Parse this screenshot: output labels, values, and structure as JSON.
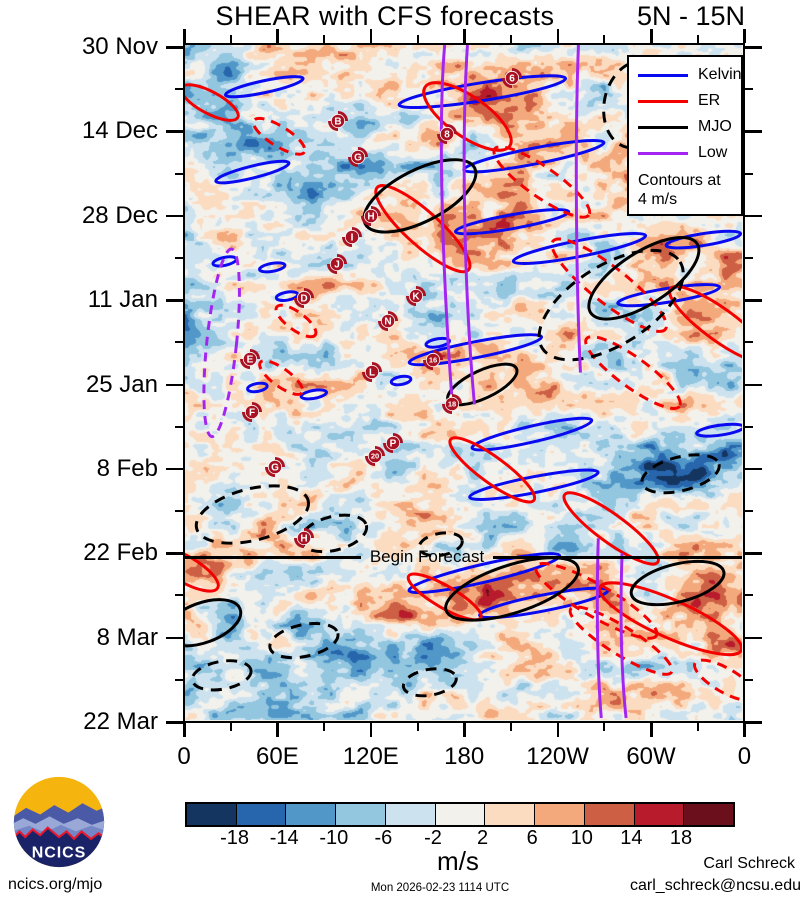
{
  "header": {
    "title": "SHEAR with CFS forecasts",
    "lat_band": "5N - 15N"
  },
  "legend": {
    "items": [
      {
        "name": "kelvin",
        "label": "Kelvin",
        "color": "#0a0af0"
      },
      {
        "name": "er",
        "label": "ER",
        "color": "#f40000"
      },
      {
        "name": "mjo",
        "label": "MJO",
        "color": "#000000"
      },
      {
        "name": "low",
        "label": "Low",
        "color": "#a225f0"
      }
    ],
    "note": [
      "Contours at",
      "4 m/s"
    ]
  },
  "chart_data": {
    "type": "heatmap",
    "title": "SHEAR with CFS forecasts",
    "latitude_band": "5N - 15N",
    "x_axis": {
      "ticks": [
        "0",
        "60E",
        "120E",
        "180",
        "120W",
        "60W",
        "0"
      ]
    },
    "y_axis": {
      "ticks": [
        "30 Nov",
        "14 Dec",
        "28 Dec",
        "11 Jan",
        "25 Jan",
        "8 Feb",
        "22 Feb",
        "8 Mar",
        "22 Mar"
      ]
    },
    "colorbar": {
      "units": "m/s",
      "tick_labels": [
        "-18",
        "-14",
        "-10",
        "-6",
        "-2",
        "2",
        "6",
        "10",
        "14",
        "18"
      ],
      "boundaries": [
        -18,
        -14,
        -10,
        -6,
        -2,
        2,
        6,
        10,
        14,
        18
      ],
      "colors": [
        "#14355f",
        "#2766ad",
        "#5198c9",
        "#93c6df",
        "#cde2ef",
        "#f2f1ec",
        "#fbdcc1",
        "#f4a97c",
        "#cd5f45",
        "#b81b2c",
        "#6b0f1d"
      ]
    },
    "contours": {
      "interval": "4 m/s",
      "series": [
        "Kelvin",
        "ER",
        "MJO",
        "Low"
      ]
    },
    "annotations": [
      {
        "label": "Begin Forecast",
        "at_date": "22 Feb"
      }
    ],
    "storm_marker_color": "#a81222",
    "storm_markers": [
      {
        "label": "B",
        "lon": "99E",
        "date": "13 Dec",
        "fx": 0.274,
        "fy": 0.113
      },
      {
        "label": "G",
        "lon": "112E",
        "date": "18 Dec",
        "fx": 0.31,
        "fy": 0.166
      },
      {
        "label": "6",
        "lon": "149W",
        "date": "5 Dec",
        "fx": 0.587,
        "fy": 0.049
      },
      {
        "label": "8",
        "lon": "170E",
        "date": "15 Dec",
        "fx": 0.471,
        "fy": 0.132
      },
      {
        "label": "H",
        "lon": "120E",
        "date": "28 Dec",
        "fx": 0.334,
        "fy": 0.254
      },
      {
        "label": "I",
        "lon": "108E",
        "date": "1 Jan",
        "fx": 0.299,
        "fy": 0.284
      },
      {
        "label": "J",
        "lon": "98E",
        "date": "5 Jan",
        "fx": 0.272,
        "fy": 0.324
      },
      {
        "label": "D",
        "lon": "77E",
        "date": "11 Jan",
        "fx": 0.214,
        "fy": 0.375
      },
      {
        "label": "K",
        "lon": "149E",
        "date": "11 Jan",
        "fx": 0.415,
        "fy": 0.372
      },
      {
        "label": "N",
        "lon": "131E",
        "date": "15 Jan",
        "fx": 0.365,
        "fy": 0.409
      },
      {
        "label": "E",
        "lon": "42E",
        "date": "21 Jan",
        "fx": 0.117,
        "fy": 0.465
      },
      {
        "label": "16",
        "lon": "160E",
        "date": "21 Jan",
        "fx": 0.445,
        "fy": 0.466
      },
      {
        "label": "L",
        "lon": "121E",
        "date": "23 Jan",
        "fx": 0.336,
        "fy": 0.485
      },
      {
        "label": "18",
        "lon": "173E",
        "date": "29 Jan",
        "fx": 0.48,
        "fy": 0.532
      },
      {
        "label": "F",
        "lon": "44E",
        "date": "30 Jan",
        "fx": 0.121,
        "fy": 0.543
      },
      {
        "label": "P",
        "lon": "135E",
        "date": "4 Feb",
        "fx": 0.374,
        "fy": 0.59
      },
      {
        "label": "20",
        "lon": "123E",
        "date": "6 Feb",
        "fx": 0.342,
        "fy": 0.609
      },
      {
        "label": "G",
        "lon": "58E",
        "date": "8 Feb",
        "fx": 0.162,
        "fy": 0.625
      },
      {
        "label": "H",
        "lon": "77E",
        "date": "20 Feb",
        "fx": 0.214,
        "fy": 0.731
      }
    ]
  },
  "footer": {
    "logo_text": "NCICS",
    "site": "ncics.org/mjo",
    "timestamp": "Mon 2026-02-23 1114 UTC",
    "author": "Carl Schreck",
    "email": "carl_schreck@ncsu.edu"
  }
}
